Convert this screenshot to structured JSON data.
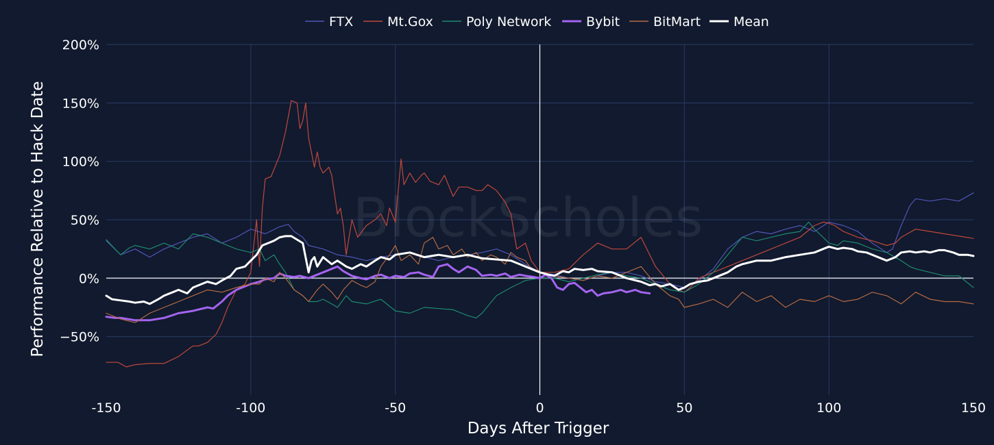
{
  "watermark": "BlockScholes",
  "chart_data": {
    "type": "line",
    "xlabel": "Days After Trigger",
    "ylabel": "Performance Relative to Hack Date",
    "xlim": [
      -150,
      150
    ],
    "ylim": [
      -100,
      200
    ],
    "x_ticks": [
      -150,
      -100,
      -50,
      0,
      50,
      100,
      150
    ],
    "y_ticks": [
      -50,
      0,
      50,
      100,
      150,
      200
    ],
    "y_tick_labels": [
      "−50%",
      "0%",
      "50%",
      "100%",
      "150%",
      "200%"
    ],
    "x_tick_labels": [
      "-150",
      "-100",
      "-50",
      "0",
      "50",
      "100",
      "150"
    ],
    "grid": true,
    "legend_position": "top",
    "vertical_marker_x": 0,
    "series": [
      {
        "name": "FTX",
        "color": "#5156b8",
        "width": 1.2,
        "x": [
          -150,
          -145,
          -140,
          -135,
          -130,
          -125,
          -120,
          -115,
          -110,
          -105,
          -100,
          -95,
          -90,
          -87,
          -85,
          -82,
          -80,
          -75,
          -70,
          -65,
          -60,
          -55,
          -50,
          -45,
          -40,
          -35,
          -30,
          -25,
          -20,
          -15,
          -10,
          -5,
          0,
          5,
          10,
          15,
          20,
          25,
          30,
          35,
          40,
          45,
          50,
          55,
          60,
          65,
          70,
          75,
          80,
          85,
          90,
          95,
          100,
          105,
          110,
          115,
          120,
          122,
          125,
          128,
          130,
          135,
          140,
          145,
          150
        ],
        "y": [
          32,
          20,
          25,
          18,
          25,
          30,
          35,
          38,
          30,
          35,
          42,
          38,
          44,
          46,
          40,
          35,
          28,
          25,
          20,
          18,
          15,
          18,
          20,
          22,
          18,
          15,
          18,
          20,
          22,
          25,
          20,
          12,
          5,
          3,
          0,
          -2,
          2,
          5,
          5,
          2,
          -3,
          -5,
          -8,
          -2,
          8,
          25,
          35,
          40,
          38,
          42,
          45,
          40,
          48,
          45,
          40,
          30,
          22,
          25,
          45,
          62,
          68,
          66,
          68,
          66,
          73
        ]
      },
      {
        "name": "Mt.Gox",
        "color": "#c2483d",
        "width": 1.2,
        "x": [
          -150,
          -146,
          -143,
          -140,
          -135,
          -130,
          -125,
          -120,
          -118,
          -115,
          -112,
          -110,
          -108,
          -105,
          -102,
          -100,
          -98,
          -97,
          -96,
          -95,
          -93,
          -90,
          -88,
          -86,
          -84,
          -83,
          -82,
          -81,
          -80,
          -78,
          -77,
          -76,
          -75,
          -73,
          -72,
          -70,
          -69,
          -68,
          -67,
          -65,
          -63,
          -60,
          -57,
          -55,
          -53,
          -52,
          -50,
          -49,
          -48,
          -47,
          -45,
          -43,
          -41,
          -40,
          -38,
          -35,
          -33,
          -30,
          -28,
          -25,
          -22,
          -20,
          -18,
          -15,
          -12,
          -10,
          -8,
          -5,
          -3,
          0,
          5,
          10,
          15,
          20,
          25,
          30,
          35,
          40,
          45,
          48,
          50,
          52,
          55,
          60,
          65,
          70,
          75,
          80,
          85,
          90,
          95,
          98,
          100,
          102,
          105,
          110,
          115,
          120,
          123,
          125,
          130,
          135,
          140,
          145,
          150
        ],
        "y": [
          -72,
          -72,
          -76,
          -74,
          -73,
          -73,
          -67,
          -58,
          -58,
          -55,
          -48,
          -38,
          -25,
          -10,
          -5,
          5,
          50,
          10,
          60,
          85,
          87,
          105,
          125,
          152,
          150,
          128,
          135,
          150,
          120,
          95,
          108,
          95,
          90,
          95,
          88,
          55,
          60,
          45,
          20,
          50,
          35,
          45,
          50,
          55,
          45,
          60,
          48,
          75,
          102,
          80,
          90,
          82,
          88,
          90,
          83,
          80,
          88,
          70,
          78,
          78,
          75,
          75,
          80,
          75,
          65,
          55,
          25,
          30,
          15,
          5,
          5,
          8,
          20,
          30,
          25,
          25,
          35,
          10,
          -5,
          -10,
          -12,
          -8,
          0,
          5,
          10,
          15,
          20,
          25,
          30,
          35,
          45,
          48,
          47,
          45,
          40,
          35,
          32,
          28,
          30,
          35,
          42,
          40,
          38,
          36,
          34
        ]
      },
      {
        "name": "Poly Network",
        "color": "#1f8a70",
        "width": 1.2,
        "x": [
          -150,
          -147,
          -145,
          -142,
          -140,
          -135,
          -130,
          -125,
          -120,
          -115,
          -110,
          -105,
          -100,
          -97,
          -95,
          -92,
          -90,
          -88,
          -85,
          -82,
          -80,
          -77,
          -75,
          -72,
          -70,
          -67,
          -65,
          -60,
          -55,
          -50,
          -45,
          -40,
          -35,
          -30,
          -25,
          -22,
          -20,
          -15,
          -10,
          -5,
          0,
          5,
          10,
          15,
          20,
          25,
          30,
          35,
          40,
          45,
          50,
          55,
          60,
          65,
          70,
          75,
          80,
          85,
          90,
          93,
          95,
          98,
          100,
          103,
          105,
          110,
          115,
          120,
          125,
          128,
          130,
          135,
          140,
          145,
          150
        ],
        "y": [
          33,
          25,
          20,
          26,
          28,
          25,
          30,
          25,
          38,
          35,
          30,
          25,
          22,
          25,
          15,
          20,
          12,
          5,
          -10,
          -15,
          -20,
          -20,
          -18,
          -22,
          -25,
          -15,
          -20,
          -22,
          -18,
          -28,
          -30,
          -25,
          -26,
          -27,
          -32,
          -34,
          -30,
          -15,
          -8,
          -2,
          0,
          0,
          -3,
          0,
          3,
          5,
          2,
          0,
          -5,
          -10,
          -12,
          -5,
          5,
          20,
          35,
          32,
          35,
          38,
          40,
          48,
          42,
          35,
          30,
          28,
          32,
          30,
          25,
          22,
          15,
          10,
          8,
          5,
          2,
          2,
          -8
        ]
      },
      {
        "name": "Bybit",
        "color": "#a464f0",
        "width": 3,
        "x": [
          -150,
          -147,
          -145,
          -140,
          -135,
          -130,
          -125,
          -120,
          -115,
          -113,
          -110,
          -108,
          -105,
          -103,
          -100,
          -97,
          -95,
          -92,
          -90,
          -88,
          -85,
          -83,
          -80,
          -77,
          -75,
          -72,
          -70,
          -68,
          -65,
          -62,
          -60,
          -57,
          -55,
          -52,
          -50,
          -47,
          -45,
          -42,
          -40,
          -37,
          -35,
          -32,
          -30,
          -28,
          -25,
          -22,
          -20,
          -17,
          -15,
          -12,
          -10,
          -7,
          -5,
          -2,
          0,
          2,
          4,
          6,
          8,
          10,
          12,
          14,
          16,
          18,
          20,
          22,
          25,
          28,
          30,
          33,
          35,
          38
        ],
        "y": [
          -33,
          -34,
          -34,
          -36,
          -36,
          -34,
          -30,
          -28,
          -25,
          -26,
          -20,
          -15,
          -10,
          -8,
          -5,
          -3,
          -1,
          0,
          4,
          2,
          1,
          2,
          0,
          3,
          5,
          8,
          10,
          6,
          2,
          0,
          -1,
          2,
          3,
          0,
          2,
          1,
          4,
          5,
          3,
          1,
          10,
          12,
          8,
          5,
          10,
          7,
          2,
          3,
          2,
          4,
          1,
          3,
          2,
          1,
          0,
          3,
          0,
          -8,
          -10,
          -5,
          -4,
          -8,
          -12,
          -10,
          -15,
          -13,
          -12,
          -10,
          -12,
          -10,
          -12,
          -13
        ]
      },
      {
        "name": "BitMart",
        "color": "#b56a45",
        "width": 1.2,
        "x": [
          -150,
          -145,
          -140,
          -135,
          -130,
          -125,
          -120,
          -115,
          -110,
          -105,
          -100,
          -97,
          -95,
          -92,
          -90,
          -88,
          -85,
          -82,
          -80,
          -77,
          -75,
          -72,
          -70,
          -68,
          -65,
          -62,
          -60,
          -57,
          -55,
          -52,
          -50,
          -48,
          -45,
          -42,
          -40,
          -37,
          -35,
          -32,
          -30,
          -27,
          -25,
          -22,
          -20,
          -17,
          -15,
          -12,
          -10,
          -8,
          -5,
          -3,
          0,
          5,
          10,
          15,
          20,
          25,
          30,
          35,
          40,
          45,
          48,
          50,
          55,
          60,
          65,
          70,
          75,
          80,
          85,
          90,
          95,
          100,
          105,
          110,
          115,
          120,
          125,
          130,
          135,
          140,
          145,
          150
        ],
        "y": [
          -30,
          -35,
          -38,
          -30,
          -25,
          -20,
          -15,
          -10,
          -12,
          -8,
          -5,
          -5,
          0,
          -3,
          5,
          0,
          -10,
          -15,
          -20,
          -10,
          -5,
          -12,
          -18,
          -10,
          -2,
          -6,
          -8,
          -3,
          10,
          20,
          28,
          15,
          20,
          12,
          30,
          35,
          25,
          28,
          20,
          25,
          18,
          22,
          15,
          20,
          18,
          12,
          22,
          18,
          15,
          8,
          5,
          2,
          0,
          -2,
          2,
          0,
          5,
          10,
          -5,
          -15,
          -18,
          -25,
          -22,
          -18,
          -25,
          -12,
          -20,
          -15,
          -25,
          -18,
          -20,
          -15,
          -20,
          -18,
          -12,
          -15,
          -22,
          -12,
          -18,
          -20,
          -20,
          -22
        ]
      },
      {
        "name": "Mean",
        "color": "#ffffff",
        "width": 3,
        "x": [
          -150,
          -148,
          -145,
          -142,
          -140,
          -137,
          -135,
          -132,
          -130,
          -127,
          -125,
          -122,
          -120,
          -117,
          -115,
          -112,
          -110,
          -107,
          -105,
          -102,
          -100,
          -98,
          -96,
          -94,
          -92,
          -90,
          -88,
          -86,
          -84,
          -82,
          -80,
          -79,
          -78,
          -77,
          -75,
          -72,
          -70,
          -67,
          -65,
          -62,
          -60,
          -57,
          -55,
          -52,
          -50,
          -45,
          -40,
          -35,
          -30,
          -25,
          -20,
          -15,
          -10,
          -5,
          0,
          3,
          5,
          8,
          10,
          12,
          15,
          18,
          20,
          25,
          30,
          35,
          38,
          40,
          42,
          45,
          48,
          50,
          52,
          55,
          58,
          60,
          63,
          65,
          68,
          70,
          75,
          80,
          85,
          90,
          95,
          98,
          100,
          103,
          105,
          108,
          110,
          113,
          115,
          118,
          120,
          123,
          125,
          128,
          130,
          133,
          135,
          138,
          140,
          143,
          145,
          148,
          150
        ],
        "y": [
          -15,
          -18,
          -19,
          -20,
          -21,
          -20,
          -22,
          -18,
          -15,
          -12,
          -10,
          -13,
          -8,
          -5,
          -3,
          -5,
          -2,
          2,
          8,
          10,
          15,
          20,
          28,
          30,
          32,
          35,
          36,
          36,
          33,
          30,
          5,
          15,
          18,
          10,
          18,
          12,
          15,
          10,
          8,
          12,
          10,
          15,
          18,
          16,
          20,
          22,
          18,
          20,
          18,
          20,
          17,
          16,
          15,
          10,
          5,
          3,
          2,
          6,
          5,
          8,
          7,
          8,
          6,
          5,
          0,
          -3,
          -6,
          -5,
          -7,
          -5,
          -10,
          -8,
          -5,
          -3,
          -2,
          0,
          3,
          5,
          10,
          12,
          15,
          15,
          18,
          20,
          22,
          25,
          27,
          25,
          26,
          25,
          23,
          22,
          20,
          17,
          15,
          18,
          22,
          23,
          22,
          23,
          22,
          24,
          24,
          22,
          20,
          20,
          19
        ]
      }
    ]
  }
}
